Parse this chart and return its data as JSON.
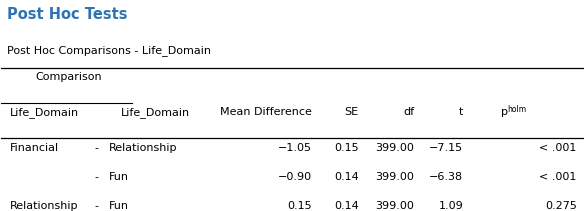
{
  "title": "Post Hoc Tests",
  "subtitle": "Post Hoc Comparisons - Life_Domain",
  "title_color": "#2E74B5",
  "rows": [
    [
      "Financial",
      "-",
      "Relationship",
      "−1.05",
      "0.15",
      "399.00",
      "−7.15",
      "< .001"
    ],
    [
      "",
      "-",
      "Fun",
      "−0.90",
      "0.14",
      "399.00",
      "−6.38",
      "< .001"
    ],
    [
      "Relationship",
      "-",
      "Fun",
      "0.15",
      "0.14",
      "399.00",
      "1.09",
      "0.275"
    ]
  ],
  "background": "#FFFFFF",
  "text_color": "#000000",
  "font_size": 8.0,
  "title_fontsize": 10.5
}
